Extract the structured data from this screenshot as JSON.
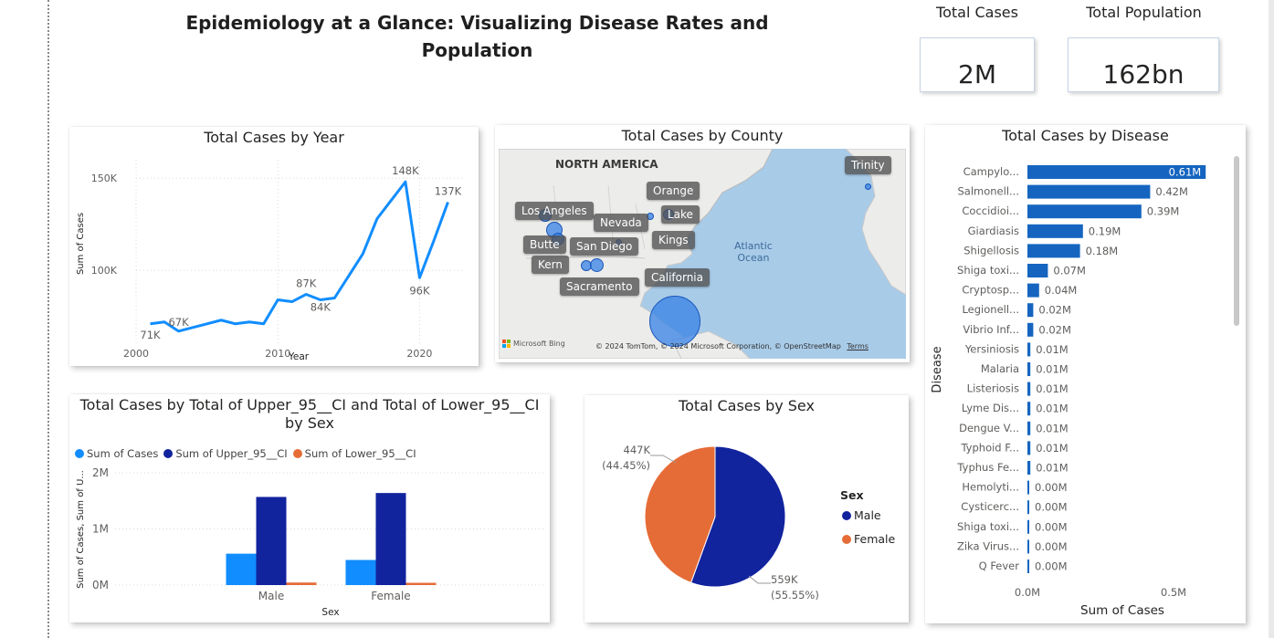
{
  "dashboard": {
    "title": "Epidemiology at a Glance: Visualizing Disease Rates and Population"
  },
  "kpis": {
    "total_cases": {
      "label": "Total Cases",
      "value": "2M"
    },
    "total_population": {
      "label": "Total Population",
      "value": "162bn"
    }
  },
  "colors": {
    "primary_blue": "#118DFF",
    "dark_blue": "#12239E",
    "orange": "#E66C37",
    "bar_blue": "#1565C0"
  },
  "chart_data": [
    {
      "id": "cases-by-year",
      "type": "line",
      "title": "Total Cases by Year",
      "xlabel": "Year",
      "ylabel": "Sum of Cases",
      "x": [
        2001,
        2002,
        2003,
        2004,
        2005,
        2006,
        2007,
        2008,
        2009,
        2010,
        2011,
        2012,
        2013,
        2014,
        2015,
        2016,
        2017,
        2018,
        2019,
        2020,
        2021,
        2022
      ],
      "values": [
        71000,
        72000,
        67000,
        69000,
        71000,
        73000,
        71000,
        72000,
        71000,
        84000,
        83000,
        87000,
        84000,
        85000,
        97000,
        109000,
        128000,
        138000,
        148000,
        96000,
        116000,
        137000
      ],
      "data_labels": [
        {
          "year": 2001,
          "text": "71K"
        },
        {
          "year": 2003,
          "text": "67K"
        },
        {
          "year": 2012,
          "text": "87K"
        },
        {
          "year": 2013,
          "text": "84K"
        },
        {
          "year": 2019,
          "text": "148K"
        },
        {
          "year": 2020,
          "text": "96K"
        },
        {
          "year": 2022,
          "text": "137K"
        }
      ],
      "xticks": [
        "2000",
        "2010",
        "2020"
      ],
      "yticks": [
        "100K",
        "150K"
      ],
      "xlim": [
        2000,
        2023
      ],
      "ylim": [
        60000,
        160000
      ],
      "grid": true
    },
    {
      "id": "cases-by-upper-lower-ci",
      "type": "bar",
      "title": "Total Cases by Total of Upper_95__CI and Total of Lower_95__CI by Sex",
      "xlabel": "Sex",
      "ylabel": "Sum of Cases, Sum of U...",
      "categories": [
        "Male",
        "Female"
      ],
      "series": [
        {
          "name": "Sum of Cases",
          "values": [
            559000,
            447000
          ]
        },
        {
          "name": "Sum of Upper_95__CI",
          "values": [
            1570000,
            1640000
          ]
        },
        {
          "name": "Sum of Lower_95__CI",
          "values": [
            45000,
            40000
          ]
        }
      ],
      "yticks": [
        "0M",
        "1M",
        "2M"
      ],
      "ylim": [
        0,
        2000000
      ],
      "legend": "top-left"
    },
    {
      "id": "cases-by-sex",
      "type": "pie",
      "title": "Total Cases by Sex",
      "legend_title": "Sex",
      "slices": [
        {
          "label": "Male",
          "value": 559000,
          "text": "559K",
          "pct": "(55.55%)"
        },
        {
          "label": "Female",
          "value": 447000,
          "text": "447K",
          "pct": "(44.45%)"
        }
      ],
      "legend": "right"
    },
    {
      "id": "cases-by-disease",
      "type": "bar",
      "orientation": "horizontal",
      "title": "Total Cases by Disease",
      "xlabel": "Sum of Cases",
      "ylabel": "Disease",
      "categories": [
        "Campylo...",
        "Salmonell...",
        "Coccidioi...",
        "Giardiasis",
        "Shigellosis",
        "Shiga toxi...",
        "Cryptosp...",
        "Legionell...",
        "Vibrio Inf...",
        "Yersiniosis",
        "Malaria",
        "Listeriosis",
        "Lyme Dis...",
        "Dengue V...",
        "Typhoid F...",
        "Typhus Fe...",
        "Hemolyti...",
        "Cysticerc...",
        "Shiga toxi...",
        "Zika Virus...",
        "Q Fever"
      ],
      "values": [
        0.61,
        0.42,
        0.39,
        0.19,
        0.18,
        0.07,
        0.04,
        0.02,
        0.02,
        0.01,
        0.01,
        0.01,
        0.01,
        0.01,
        0.01,
        0.01,
        0.004,
        0.004,
        0.004,
        0.004,
        0.003
      ],
      "value_labels": [
        "0.61M",
        "0.42M",
        "0.39M",
        "0.19M",
        "0.18M",
        "0.07M",
        "0.04M",
        "0.02M",
        "0.02M",
        "0.01M",
        "0.01M",
        "0.01M",
        "0.01M",
        "0.01M",
        "0.01M",
        "0.01M",
        "0.00M",
        "0.00M",
        "0.00M",
        "0.00M",
        "0.00M"
      ],
      "xticks": [
        "0.0M",
        "0.5M"
      ],
      "xlim": [
        0,
        0.65
      ],
      "unit": "M"
    }
  ],
  "map": {
    "title": "Total Cases by County",
    "continent_label": "NORTH AMERICA",
    "ocean_label": [
      "Atlantic",
      "Ocean"
    ],
    "attribution": "© 2024 TomTom, © 2024 Microsoft Corporation, © OpenStreetMap",
    "terms": "Terms",
    "logo_text": "Microsoft Bing",
    "counties": [
      "Trinity",
      "Orange",
      "Los Angeles",
      "Nevada",
      "Lake",
      "Butte",
      "San Diego",
      "Kings",
      "Kern",
      "California",
      "Sacramento"
    ]
  }
}
